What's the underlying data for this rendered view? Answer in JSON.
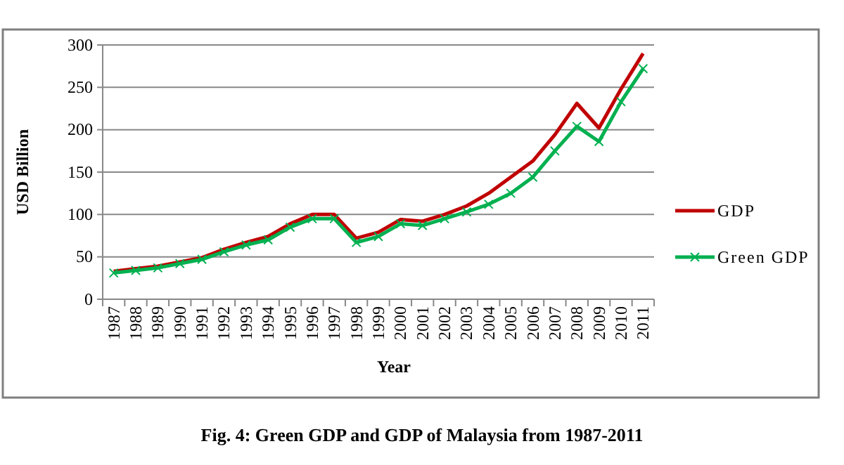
{
  "chart_data": {
    "type": "line",
    "xlabel": "Year",
    "ylabel": "USD Billion",
    "annotations": [
      "Fig. 4: Green GDP and GDP of Malaysia from 1987-2011"
    ],
    "categories": [
      "1987",
      "1988",
      "1989",
      "1990",
      "1991",
      "1992",
      "1993",
      "1994",
      "1995",
      "1996",
      "1997",
      "1998",
      "1999",
      "2000",
      "2001",
      "2002",
      "2003",
      "2004",
      "2005",
      "2006",
      "2007",
      "2008",
      "2009",
      "2010",
      "2011"
    ],
    "series": [
      {
        "name": "GDP",
        "color": "#c00000",
        "marker": "none",
        "values": [
          33,
          36,
          39,
          44,
          49,
          59,
          67,
          74,
          89,
          100,
          100,
          72,
          79,
          94,
          92,
          100,
          110,
          125,
          144,
          163,
          194,
          231,
          202,
          248,
          290
        ]
      },
      {
        "name": "Green GDP",
        "color": "#00b050",
        "marker": "cross",
        "values": [
          31,
          34,
          37,
          42,
          47,
          56,
          64,
          70,
          85,
          95,
          95,
          67,
          74,
          89,
          87,
          95,
          103,
          112,
          125,
          144,
          175,
          204,
          186,
          233,
          272
        ]
      }
    ],
    "ylim": [
      0,
      300
    ],
    "yticks": [
      0,
      50,
      100,
      150,
      200,
      250,
      300
    ],
    "grid": "y",
    "legend": "right",
    "line_style": "solid"
  }
}
